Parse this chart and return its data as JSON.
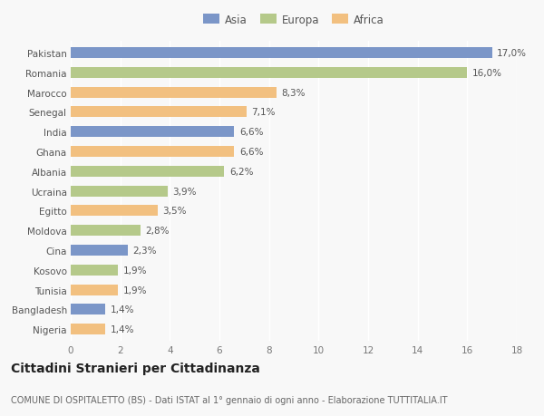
{
  "countries": [
    "Pakistan",
    "Romania",
    "Marocco",
    "Senegal",
    "India",
    "Ghana",
    "Albania",
    "Ucraina",
    "Egitto",
    "Moldova",
    "Cina",
    "Kosovo",
    "Tunisia",
    "Bangladesh",
    "Nigeria"
  ],
  "values": [
    17.0,
    16.0,
    8.3,
    7.1,
    6.6,
    6.6,
    6.2,
    3.9,
    3.5,
    2.8,
    2.3,
    1.9,
    1.9,
    1.4,
    1.4
  ],
  "continents": [
    "Asia",
    "Europa",
    "Africa",
    "Africa",
    "Asia",
    "Africa",
    "Europa",
    "Europa",
    "Africa",
    "Europa",
    "Asia",
    "Europa",
    "Africa",
    "Asia",
    "Africa"
  ],
  "colors": {
    "Asia": "#7b96c8",
    "Europa": "#b5c98a",
    "Africa": "#f2c080"
  },
  "legend_order": [
    "Asia",
    "Europa",
    "Africa"
  ],
  "xlim": [
    0,
    18
  ],
  "xticks": [
    0,
    2,
    4,
    6,
    8,
    10,
    12,
    14,
    16,
    18
  ],
  "title": "Cittadini Stranieri per Cittadinanza",
  "subtitle": "COMUNE DI OSPITALETTO (BS) - Dati ISTAT al 1° gennaio di ogni anno - Elaborazione TUTTITALIA.IT",
  "bg_color": "#f8f8f8",
  "bar_height": 0.55,
  "label_fontsize": 7.5,
  "value_fontsize": 7.5,
  "title_fontsize": 10,
  "subtitle_fontsize": 7.0
}
